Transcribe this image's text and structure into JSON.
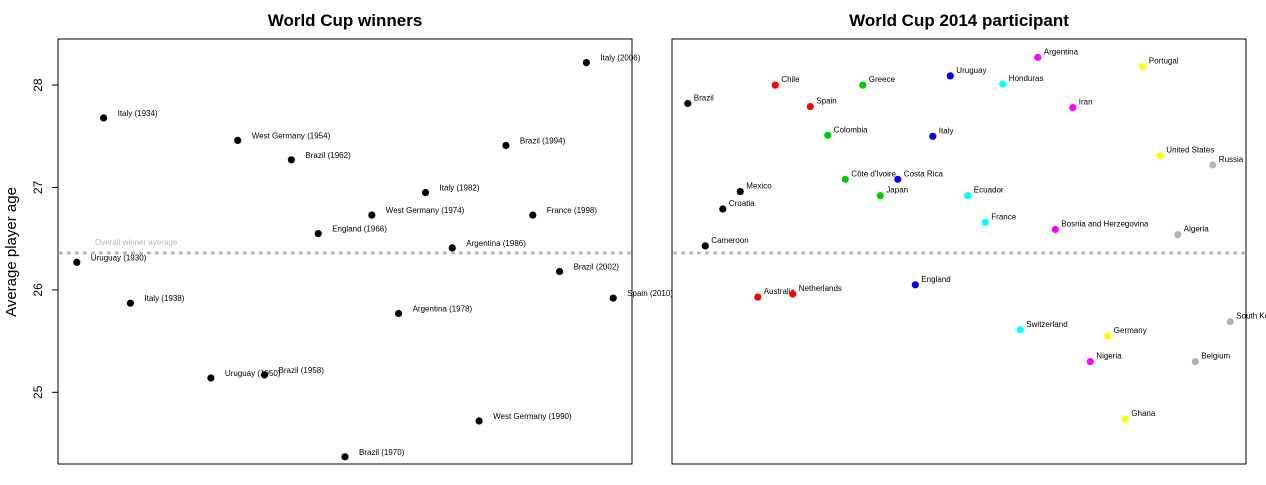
{
  "chart_data": [
    {
      "type": "scatter",
      "title": "World Cup winners",
      "ylabel": "Average player age",
      "ylim": [
        24.3,
        28.45
      ],
      "yticks": [
        25,
        26,
        27,
        28
      ],
      "point_color": "#000000",
      "reference_line": {
        "value": 26.36,
        "label": "Overall winner average",
        "color": "#bdbdbd"
      },
      "points": [
        {
          "label": "Uruguay (1930)",
          "x": 1,
          "y": 26.27
        },
        {
          "label": "Italy (1934)",
          "x": 2,
          "y": 27.68
        },
        {
          "label": "Italy (1938)",
          "x": 3,
          "y": 25.87
        },
        {
          "label": "Uruguay (1950)",
          "x": 6,
          "y": 25.14
        },
        {
          "label": "West Germany (1954)",
          "x": 7,
          "y": 27.46
        },
        {
          "label": "Brazil (1958)",
          "x": 8,
          "y": 25.17
        },
        {
          "label": "Brazil (1962)",
          "x": 9,
          "y": 27.27
        },
        {
          "label": "England (1966)",
          "x": 10,
          "y": 26.55
        },
        {
          "label": "Brazil (1970)",
          "x": 11,
          "y": 24.37
        },
        {
          "label": "West Germany (1974)",
          "x": 12,
          "y": 26.73
        },
        {
          "label": "Argentina (1978)",
          "x": 13,
          "y": 25.77
        },
        {
          "label": "Italy (1982)",
          "x": 14,
          "y": 26.95
        },
        {
          "label": "Argentina (1986)",
          "x": 15,
          "y": 26.41
        },
        {
          "label": "West Germany (1990)",
          "x": 16,
          "y": 24.72
        },
        {
          "label": "Brazil (1994)",
          "x": 17,
          "y": 27.41
        },
        {
          "label": "France (1998)",
          "x": 18,
          "y": 26.73
        },
        {
          "label": "Brazil (2002)",
          "x": 19,
          "y": 26.18
        },
        {
          "label": "Italy (2006)",
          "x": 20,
          "y": 28.22
        },
        {
          "label": "Spain (2010)",
          "x": 21,
          "y": 25.92
        }
      ]
    },
    {
      "type": "scatter",
      "title": "World Cup 2014 participant",
      "ylim": [
        24.3,
        28.45
      ],
      "yticks": [
        25,
        26,
        27,
        28
      ],
      "reference_line": {
        "value": 26.36,
        "color": "#bdbdbd"
      },
      "group_colors": {
        "A": "#000000",
        "B": "#ff0000",
        "C": "#00cc00",
        "D": "#0000ff",
        "E": "#00ffff",
        "F": "#ff00ff",
        "G": "#ffff00",
        "H": "#b3b3b3"
      },
      "points": [
        {
          "label": "Brazil",
          "group": "A",
          "x": 1,
          "y": 27.82
        },
        {
          "label": "Cameroon",
          "group": "A",
          "x": 2,
          "y": 26.43
        },
        {
          "label": "Croatia",
          "group": "A",
          "x": 3,
          "y": 26.79
        },
        {
          "label": "Mexico",
          "group": "A",
          "x": 4,
          "y": 26.96
        },
        {
          "label": "Australia",
          "group": "B",
          "x": 5,
          "y": 25.93
        },
        {
          "label": "Chile",
          "group": "B",
          "x": 6,
          "y": 28.0
        },
        {
          "label": "Netherlands",
          "group": "B",
          "x": 7,
          "y": 25.96
        },
        {
          "label": "Spain",
          "group": "B",
          "x": 8,
          "y": 27.79
        },
        {
          "label": "Colombia",
          "group": "C",
          "x": 9,
          "y": 27.51
        },
        {
          "label": "Côte d'Ivoire",
          "group": "C",
          "x": 10,
          "y": 27.08
        },
        {
          "label": "Greece",
          "group": "C",
          "x": 11,
          "y": 28.0
        },
        {
          "label": "Japan",
          "group": "C",
          "x": 12,
          "y": 26.92
        },
        {
          "label": "Costa Rica",
          "group": "D",
          "x": 13,
          "y": 27.08
        },
        {
          "label": "England",
          "group": "D",
          "x": 14,
          "y": 26.05
        },
        {
          "label": "Italy",
          "group": "D",
          "x": 15,
          "y": 27.5
        },
        {
          "label": "Uruguay",
          "group": "D",
          "x": 16,
          "y": 28.09
        },
        {
          "label": "Ecuador",
          "group": "E",
          "x": 17,
          "y": 26.92
        },
        {
          "label": "France",
          "group": "E",
          "x": 18,
          "y": 26.66
        },
        {
          "label": "Honduras",
          "group": "E",
          "x": 19,
          "y": 28.01
        },
        {
          "label": "Switzerland",
          "group": "E",
          "x": 20,
          "y": 25.61
        },
        {
          "label": "Argentina",
          "group": "F",
          "x": 21,
          "y": 28.27
        },
        {
          "label": "Bosnia and Herzegovina",
          "group": "F",
          "x": 22,
          "y": 26.59
        },
        {
          "label": "Iran",
          "group": "F",
          "x": 23,
          "y": 27.78
        },
        {
          "label": "Nigeria",
          "group": "F",
          "x": 24,
          "y": 25.3
        },
        {
          "label": "Germany",
          "group": "G",
          "x": 25,
          "y": 25.55
        },
        {
          "label": "Ghana",
          "group": "G",
          "x": 26,
          "y": 24.74
        },
        {
          "label": "Portugal",
          "group": "G",
          "x": 27,
          "y": 28.18
        },
        {
          "label": "United States",
          "group": "G",
          "x": 28,
          "y": 27.31
        },
        {
          "label": "Algeria",
          "group": "H",
          "x": 29,
          "y": 26.54
        },
        {
          "label": "Belgium",
          "group": "H",
          "x": 30,
          "y": 25.3
        },
        {
          "label": "Russia",
          "group": "H",
          "x": 31,
          "y": 27.22
        },
        {
          "label": "South Korea",
          "group": "H",
          "x": 32,
          "y": 25.69
        }
      ]
    }
  ]
}
